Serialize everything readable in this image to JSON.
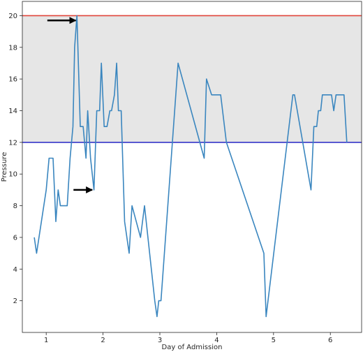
{
  "chart_data": {
    "type": "line",
    "xlabel": "Day of Admission",
    "ylabel": "Pressure",
    "xlim": [
      0.58,
      6.55
    ],
    "ylim": [
      0.0,
      20.9
    ],
    "x_ticks": [
      1,
      2,
      3,
      4,
      5,
      6
    ],
    "y_ticks": [
      2,
      4,
      6,
      8,
      10,
      12,
      14,
      16,
      18,
      20
    ],
    "grid": false,
    "band": {
      "from": 12,
      "to": 20,
      "color": "#e6e6e6"
    },
    "reference_lines": [
      {
        "y": 20,
        "color": "#e0443a"
      },
      {
        "y": 12,
        "color": "#3434c8"
      }
    ],
    "arrows": [
      {
        "x_tail": 1.02,
        "x_head": 1.52,
        "y": 19.7,
        "color": "#000000"
      },
      {
        "x_tail": 1.48,
        "x_head": 1.81,
        "y": 9.0,
        "color": "#000000"
      }
    ],
    "series": [
      {
        "color": "#3a86bf",
        "x": [
          0.79,
          0.83,
          1.0,
          1.05,
          1.12,
          1.17,
          1.21,
          1.25,
          1.37,
          1.42,
          1.47,
          1.5,
          1.54,
          1.6,
          1.65,
          1.7,
          1.73,
          1.78,
          1.84,
          1.89,
          1.94,
          1.97,
          2.02,
          2.07,
          2.12,
          2.15,
          2.2,
          2.24,
          2.27,
          2.32,
          2.38,
          2.46,
          2.51,
          2.66,
          2.73,
          2.91,
          2.95,
          2.98,
          3.02,
          3.32,
          3.78,
          3.82,
          3.91,
          4.07,
          4.17,
          4.83,
          4.87,
          5.34,
          5.37,
          5.66,
          5.71,
          5.76,
          5.79,
          5.83,
          5.86,
          5.92,
          5.98,
          6.02,
          6.06,
          6.1,
          6.2,
          6.24,
          6.29
        ],
        "y": [
          6,
          5,
          9,
          11,
          11,
          7,
          9,
          8,
          8,
          11,
          13,
          18,
          20,
          13,
          13,
          11,
          14,
          11,
          9,
          14,
          14,
          17,
          13,
          13,
          14,
          14,
          15,
          17,
          14,
          14,
          7,
          5,
          8,
          6,
          8,
          2,
          1,
          2,
          2,
          17,
          11,
          16,
          15,
          15,
          12,
          5,
          1,
          15,
          15,
          9,
          13,
          13,
          14,
          14,
          15,
          15,
          15,
          15,
          14,
          15,
          15,
          15,
          12
        ]
      }
    ]
  }
}
